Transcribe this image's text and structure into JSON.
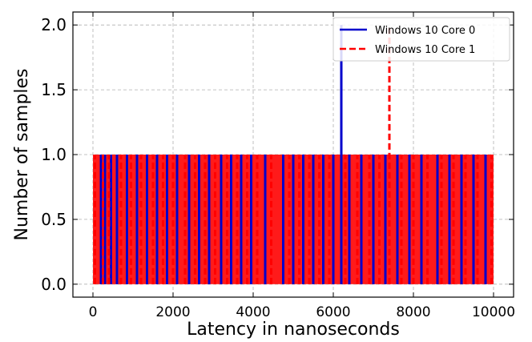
{
  "chart_data": {
    "type": "line",
    "xlabel": "Latency in nanoseconds",
    "ylabel": "Number of samples",
    "xlim": [
      -500,
      10500
    ],
    "ylim": [
      -0.1,
      2.1
    ],
    "xticks": [
      0,
      2000,
      4000,
      6000,
      8000,
      10000
    ],
    "yticks": [
      0.0,
      0.5,
      1.0,
      1.5,
      2.0
    ],
    "xtick_labels": [
      "0",
      "2000",
      "4000",
      "6000",
      "8000",
      "10000"
    ],
    "ytick_labels": [
      "0.0",
      "0.5",
      "1.0",
      "1.5",
      "2.0"
    ],
    "grid": true,
    "legend_position": "top-right",
    "series": [
      {
        "name": "Windows 10 Core 0",
        "color": "#0000cc",
        "style": "solid",
        "spikes": [
          {
            "x": 200,
            "y": 1
          },
          {
            "x": 300,
            "y": 1
          },
          {
            "x": 450,
            "y": 1
          },
          {
            "x": 600,
            "y": 1
          },
          {
            "x": 850,
            "y": 1
          },
          {
            "x": 1100,
            "y": 1
          },
          {
            "x": 1350,
            "y": 1
          },
          {
            "x": 1600,
            "y": 1
          },
          {
            "x": 1850,
            "y": 1
          },
          {
            "x": 2100,
            "y": 1
          },
          {
            "x": 2400,
            "y": 1
          },
          {
            "x": 2650,
            "y": 1
          },
          {
            "x": 2900,
            "y": 1
          },
          {
            "x": 3200,
            "y": 1
          },
          {
            "x": 3450,
            "y": 1
          },
          {
            "x": 3700,
            "y": 1
          },
          {
            "x": 3950,
            "y": 1
          },
          {
            "x": 4300,
            "y": 1
          },
          {
            "x": 4750,
            "y": 1
          },
          {
            "x": 5000,
            "y": 1
          },
          {
            "x": 5250,
            "y": 1
          },
          {
            "x": 5500,
            "y": 1
          },
          {
            "x": 5750,
            "y": 1
          },
          {
            "x": 6000,
            "y": 1
          },
          {
            "x": 6200,
            "y": 2
          },
          {
            "x": 6400,
            "y": 1
          },
          {
            "x": 6700,
            "y": 1
          },
          {
            "x": 7000,
            "y": 1
          },
          {
            "x": 7300,
            "y": 1
          },
          {
            "x": 7600,
            "y": 1
          },
          {
            "x": 7900,
            "y": 1
          },
          {
            "x": 8200,
            "y": 1
          },
          {
            "x": 8600,
            "y": 1
          },
          {
            "x": 8900,
            "y": 1
          },
          {
            "x": 9200,
            "y": 1
          },
          {
            "x": 9500,
            "y": 1
          },
          {
            "x": 9800,
            "y": 1
          }
        ]
      },
      {
        "name": "Windows 10 Core 1",
        "color": "#ff0000",
        "style": "dashed",
        "spikes": [
          {
            "x": 50,
            "y": 1
          },
          {
            "x": 250,
            "y": 1
          },
          {
            "x": 400,
            "y": 1
          },
          {
            "x": 700,
            "y": 1
          },
          {
            "x": 950,
            "y": 1
          },
          {
            "x": 1200,
            "y": 1
          },
          {
            "x": 1500,
            "y": 1
          },
          {
            "x": 1750,
            "y": 1
          },
          {
            "x": 2000,
            "y": 1
          },
          {
            "x": 2300,
            "y": 1
          },
          {
            "x": 2550,
            "y": 1
          },
          {
            "x": 2800,
            "y": 1
          },
          {
            "x": 3050,
            "y": 1
          },
          {
            "x": 3350,
            "y": 1
          },
          {
            "x": 3600,
            "y": 1
          },
          {
            "x": 3850,
            "y": 1
          },
          {
            "x": 4100,
            "y": 1
          },
          {
            "x": 4450,
            "y": 1
          },
          {
            "x": 4900,
            "y": 1
          },
          {
            "x": 5150,
            "y": 1
          },
          {
            "x": 5400,
            "y": 1
          },
          {
            "x": 5650,
            "y": 1
          },
          {
            "x": 5900,
            "y": 1
          },
          {
            "x": 6300,
            "y": 1
          },
          {
            "x": 6600,
            "y": 1
          },
          {
            "x": 6900,
            "y": 1
          },
          {
            "x": 7150,
            "y": 1
          },
          {
            "x": 7400,
            "y": 2
          },
          {
            "x": 7700,
            "y": 1
          },
          {
            "x": 8000,
            "y": 1
          },
          {
            "x": 8350,
            "y": 1
          },
          {
            "x": 8700,
            "y": 1
          },
          {
            "x": 9000,
            "y": 1
          },
          {
            "x": 9300,
            "y": 1
          },
          {
            "x": 9600,
            "y": 1
          },
          {
            "x": 9950,
            "y": 1
          }
        ]
      }
    ]
  }
}
